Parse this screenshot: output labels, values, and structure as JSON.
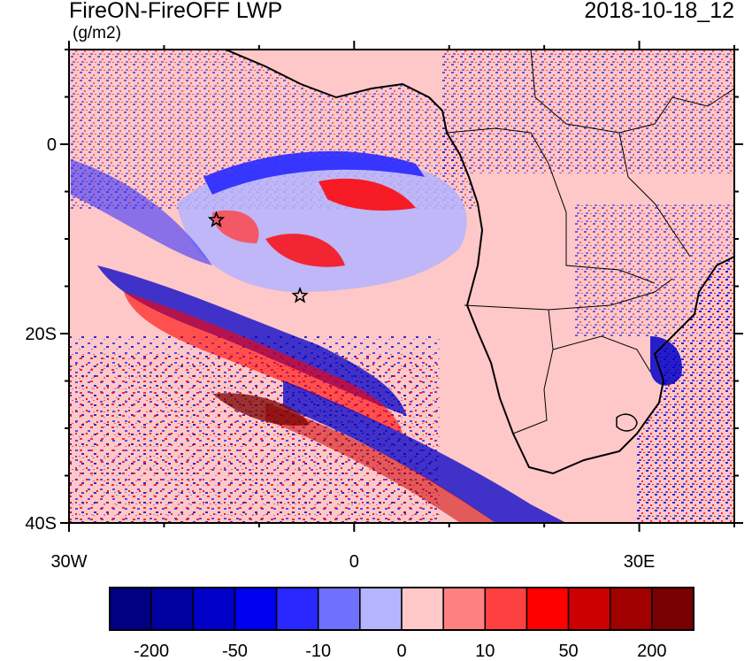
{
  "header": {
    "title": "FireON-FireOFF LWP",
    "date": "2018-10-18_12",
    "units": "(g/m2)"
  },
  "axes": {
    "lat_labels": [
      {
        "text": "0",
        "lat": 0
      },
      {
        "text": "20S",
        "lat": -20
      },
      {
        "text": "40S",
        "lat": -40
      }
    ],
    "lon_labels": [
      {
        "text": "30W",
        "lon": -30
      },
      {
        "text": "0",
        "lon": 0
      },
      {
        "text": "30E",
        "lon": 30
      }
    ],
    "lat_range": [
      -40,
      10
    ],
    "lon_range": [
      -30,
      40
    ]
  },
  "colorbar": {
    "colors": [
      "#000080",
      "#00009e",
      "#0000c8",
      "#0000f0",
      "#2828ff",
      "#7070ff",
      "#b4b4ff",
      "#ffc8c8",
      "#ff8080",
      "#ff4040",
      "#ff0000",
      "#cc0000",
      "#a00000",
      "#780000"
    ],
    "labels": [
      {
        "text": "-200",
        "boundary": 1
      },
      {
        "text": "-50",
        "boundary": 3
      },
      {
        "text": "-10",
        "boundary": 5
      },
      {
        "text": "0",
        "boundary": 7
      },
      {
        "text": "10",
        "boundary": 9
      },
      {
        "text": "50",
        "boundary": 11
      },
      {
        "text": "200",
        "boundary": 13
      }
    ]
  },
  "markers": [
    {
      "name": "star-marker-1",
      "lon": -14.5,
      "lat": -8
    },
    {
      "name": "star-marker-2",
      "lon": -5.7,
      "lat": -16
    }
  ]
}
